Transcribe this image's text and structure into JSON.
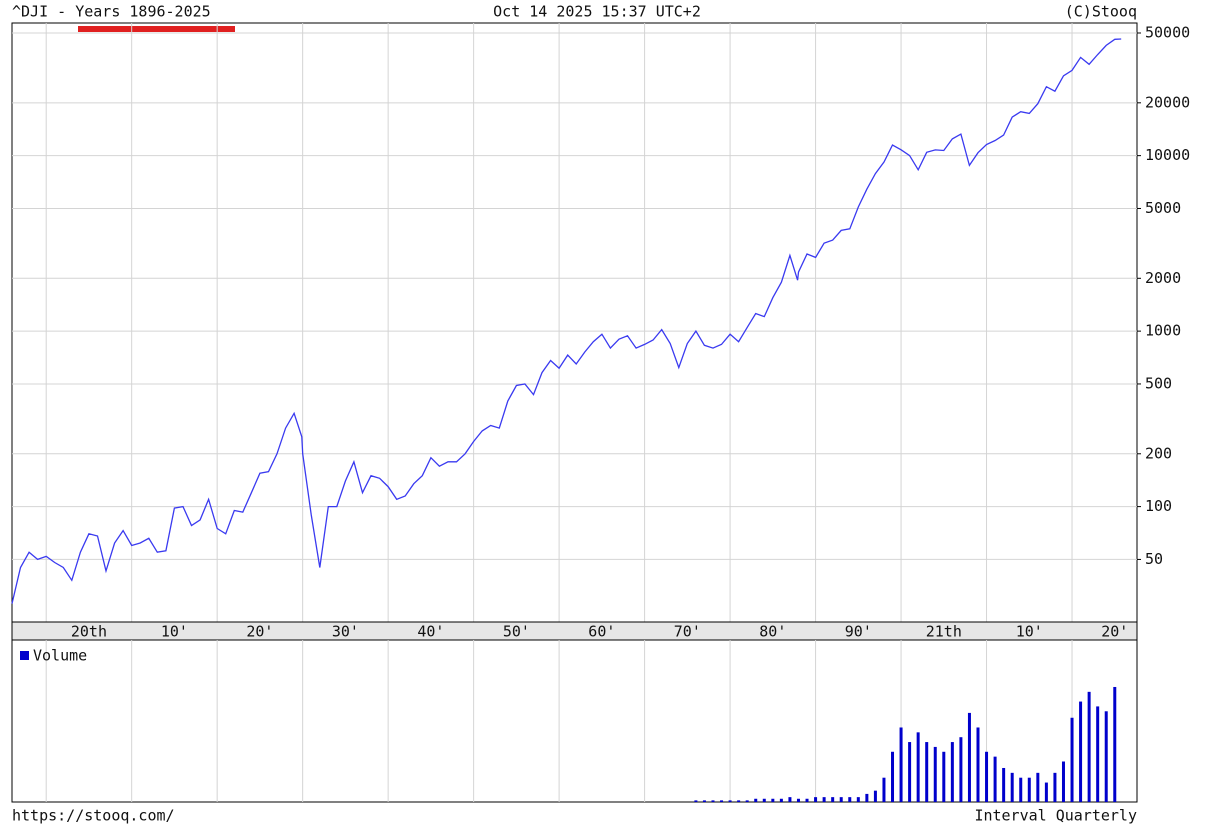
{
  "header": {
    "title": "^DJI - Years 1896-2025",
    "date": "Oct 14 2025 15:37 UTC+2",
    "copyright": "(C)Stooq"
  },
  "footer": {
    "url": "https://stooq.com/",
    "interval": "Interval Quarterly"
  },
  "chart_data": [
    {
      "type": "line",
      "color": "#3a3af0",
      "log_scale": true,
      "grid": true,
      "x": [
        1896,
        1897,
        1898,
        1899,
        1900,
        1901,
        1902,
        1903,
        1904,
        1905,
        1906,
        1907,
        1908,
        1909,
        1910,
        1911,
        1912,
        1913,
        1914,
        1915,
        1916,
        1917,
        1918,
        1919,
        1920,
        1921,
        1922,
        1923,
        1924,
        1925,
        1926,
        1927,
        1928,
        1929,
        1929.9,
        1930,
        1931,
        1932,
        1933,
        1934,
        1935,
        1936,
        1937,
        1938,
        1939,
        1940,
        1941,
        1942,
        1943,
        1944,
        1945,
        1946,
        1947,
        1948,
        1949,
        1950,
        1951,
        1952,
        1953,
        1954,
        1955,
        1956,
        1957,
        1958,
        1959,
        1960,
        1961,
        1962,
        1963,
        1964,
        1965,
        1966,
        1967,
        1968,
        1969,
        1970,
        1971,
        1972,
        1973,
        1974,
        1975,
        1976,
        1977,
        1978,
        1979,
        1980,
        1981,
        1982,
        1983,
        1984,
        1985,
        1986,
        1987,
        1987.9,
        1988,
        1989,
        1990,
        1991,
        1992,
        1993,
        1994,
        1995,
        1996,
        1997,
        1998,
        1999,
        2000,
        2001,
        2002,
        2003,
        2004,
        2005,
        2006,
        2007,
        2008,
        2009,
        2010,
        2011,
        2012,
        2013,
        2014,
        2015,
        2016,
        2017,
        2018,
        2019,
        2020,
        2021,
        2022,
        2023,
        2024,
        2025,
        2025.75
      ],
      "values": [
        28,
        45,
        55,
        50,
        52,
        48,
        45,
        38,
        55,
        70,
        68,
        43,
        62,
        73,
        60,
        62,
        66,
        55,
        56,
        98,
        100,
        78,
        84,
        110,
        75,
        70,
        95,
        93,
        120,
        155,
        158,
        200,
        280,
        340,
        250,
        200,
        90,
        45,
        100,
        100,
        140,
        180,
        120,
        150,
        145,
        130,
        110,
        115,
        135,
        150,
        190,
        170,
        180,
        180,
        200,
        235,
        270,
        290,
        280,
        400,
        490,
        500,
        435,
        580,
        680,
        615,
        730,
        650,
        760,
        870,
        960,
        800,
        900,
        940,
        800,
        840,
        890,
        1020,
        850,
        620,
        850,
        1000,
        830,
        800,
        840,
        960,
        870,
        1050,
        1260,
        1210,
        1550,
        1900,
        2700,
        1950,
        2170,
        2750,
        2630,
        3170,
        3300,
        3750,
        3830,
        5100,
        6450,
        7900,
        9200,
        11500,
        10800,
        10000,
        8300,
        10450,
        10780,
        10700,
        12460,
        13260,
        8800,
        10400,
        11580,
        12200,
        13100,
        16580,
        17800,
        17400,
        19760,
        24700,
        23300,
        28500,
        30600,
        36300,
        33150,
        37700,
        42500,
        46000,
        46200
      ],
      "xlim": [
        1896,
        2027.6
      ],
      "xticks": [
        {
          "value": 1900,
          "label": "20th"
        },
        {
          "value": 1910,
          "label": "10'"
        },
        {
          "value": 1920,
          "label": "20'"
        },
        {
          "value": 1930,
          "label": "30'"
        },
        {
          "value": 1940,
          "label": "40'"
        },
        {
          "value": 1950,
          "label": "50'"
        },
        {
          "value": 1960,
          "label": "60'"
        },
        {
          "value": 1970,
          "label": "70'"
        },
        {
          "value": 1980,
          "label": "80'"
        },
        {
          "value": 1990,
          "label": "90'"
        },
        {
          "value": 2000,
          "label": "21th"
        },
        {
          "value": 2010,
          "label": "10'"
        },
        {
          "value": 2020,
          "label": "20'"
        }
      ],
      "ylim": [
        22,
        57000
      ],
      "yticks": [
        50,
        100,
        200,
        500,
        1000,
        2000,
        5000,
        10000,
        20000,
        50000
      ]
    },
    {
      "type": "bar",
      "legend": "top-left",
      "x": [
        1976,
        1977,
        1978,
        1979,
        1980,
        1981,
        1982,
        1983,
        1984,
        1985,
        1986,
        1987,
        1988,
        1989,
        1990,
        1991,
        1992,
        1993,
        1994,
        1995,
        1996,
        1997,
        1998,
        1999,
        2000,
        2001,
        2002,
        2003,
        2004,
        2005,
        2006,
        2007,
        2008,
        2009,
        2010,
        2011,
        2012,
        2013,
        2014,
        2015,
        2016,
        2017,
        2018,
        2019,
        2020,
        2021,
        2022,
        2023,
        2024,
        2025
      ],
      "series": [
        {
          "name": "Volume",
          "color": "#0000cc",
          "values": [
            1,
            1,
            1,
            1,
            1,
            1,
            1,
            2,
            2,
            2,
            2,
            3,
            2,
            2,
            3,
            3,
            3,
            3,
            3,
            3,
            5,
            7,
            15,
            31,
            46,
            37,
            43,
            37,
            34,
            31,
            37,
            40,
            55,
            46,
            31,
            28,
            21,
            18,
            15,
            15,
            18,
            12,
            18,
            25,
            52,
            62,
            68,
            59,
            56,
            71
          ]
        }
      ],
      "xlim": [
        1896,
        2027.6
      ],
      "ylim": [
        0,
        100
      ]
    }
  ]
}
